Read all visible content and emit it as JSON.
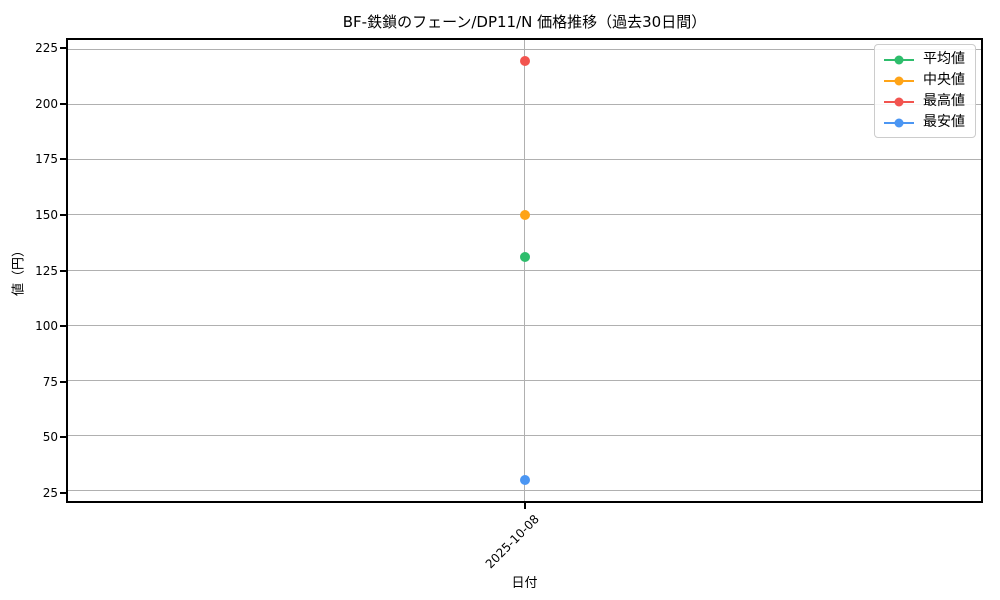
{
  "chart_data": {
    "type": "line",
    "title": "BF-鉄鎖のフェーン/DP11/N 価格推移（過去30日間）",
    "xlabel": "日付",
    "ylabel": "値（円）",
    "categories": [
      "2025-10-08"
    ],
    "series": [
      {
        "name": "平均値",
        "color": "#2ebd6c",
        "values": [
          131
        ]
      },
      {
        "name": "中央値",
        "color": "#ffa417",
        "values": [
          150
        ]
      },
      {
        "name": "最高値",
        "color": "#f2544f",
        "values": [
          220
        ]
      },
      {
        "name": "最安値",
        "color": "#4b96f3",
        "values": [
          30
        ]
      }
    ],
    "ylim": [
      20.5,
      229.5
    ],
    "yticks": [
      25,
      50,
      75,
      100,
      125,
      150,
      175,
      200,
      225
    ],
    "grid": true,
    "legend_position": "upper right",
    "marker": "circle",
    "colors": {
      "grid": "#b0b0b0",
      "spine": "#000000",
      "background": "#ffffff",
      "legend_border": "#cccccc"
    }
  }
}
